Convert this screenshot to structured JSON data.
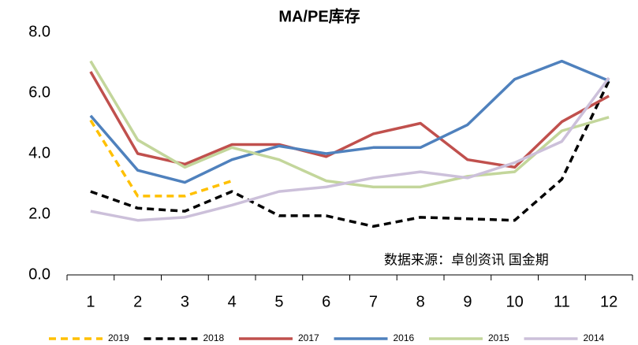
{
  "chart_data": {
    "type": "line",
    "title": "MA/PE库存",
    "annotation": "数据来源：卓创资讯 国金期",
    "categories": [
      "1",
      "2",
      "3",
      "4",
      "5",
      "6",
      "7",
      "8",
      "9",
      "10",
      "11",
      "12"
    ],
    "ylim": [
      0,
      8
    ],
    "yticks": [
      {
        "value": 0,
        "label": "0.0"
      },
      {
        "value": 2,
        "label": "2.0"
      },
      {
        "value": 4,
        "label": "4.0"
      },
      {
        "value": 6,
        "label": "6.0"
      },
      {
        "value": 8,
        "label": "8.0"
      }
    ],
    "grid": false,
    "legend": "bottom",
    "series": [
      {
        "name": "2019",
        "color": "#ffc000",
        "dashed": true,
        "values": [
          5.1,
          2.6,
          2.6,
          3.1,
          null,
          null,
          null,
          null,
          null,
          null,
          null,
          null
        ]
      },
      {
        "name": "2018",
        "color": "#000000",
        "dashed": true,
        "values": [
          2.75,
          2.2,
          2.1,
          2.75,
          1.95,
          1.95,
          1.6,
          1.9,
          1.85,
          1.8,
          3.15,
          6.4
        ]
      },
      {
        "name": "2017",
        "color": "#c0504d",
        "dashed": false,
        "values": [
          6.7,
          4.0,
          3.65,
          4.3,
          4.3,
          3.9,
          4.65,
          5.0,
          3.8,
          3.55,
          5.05,
          5.9
        ]
      },
      {
        "name": "2016",
        "color": "#4f81bd",
        "dashed": false,
        "values": [
          5.25,
          3.45,
          3.05,
          3.8,
          4.25,
          4.0,
          4.2,
          4.2,
          4.95,
          6.45,
          7.05,
          6.4
        ]
      },
      {
        "name": "2015",
        "color": "#c3d69b",
        "dashed": false,
        "values": [
          7.05,
          4.45,
          3.55,
          4.2,
          3.8,
          3.1,
          2.9,
          2.9,
          3.25,
          3.4,
          4.75,
          5.2
        ]
      },
      {
        "name": "2014",
        "color": "#ccc0da",
        "dashed": false,
        "values": [
          2.1,
          1.8,
          1.9,
          2.3,
          2.75,
          2.9,
          3.2,
          3.4,
          3.2,
          3.7,
          4.4,
          6.5
        ]
      }
    ]
  }
}
